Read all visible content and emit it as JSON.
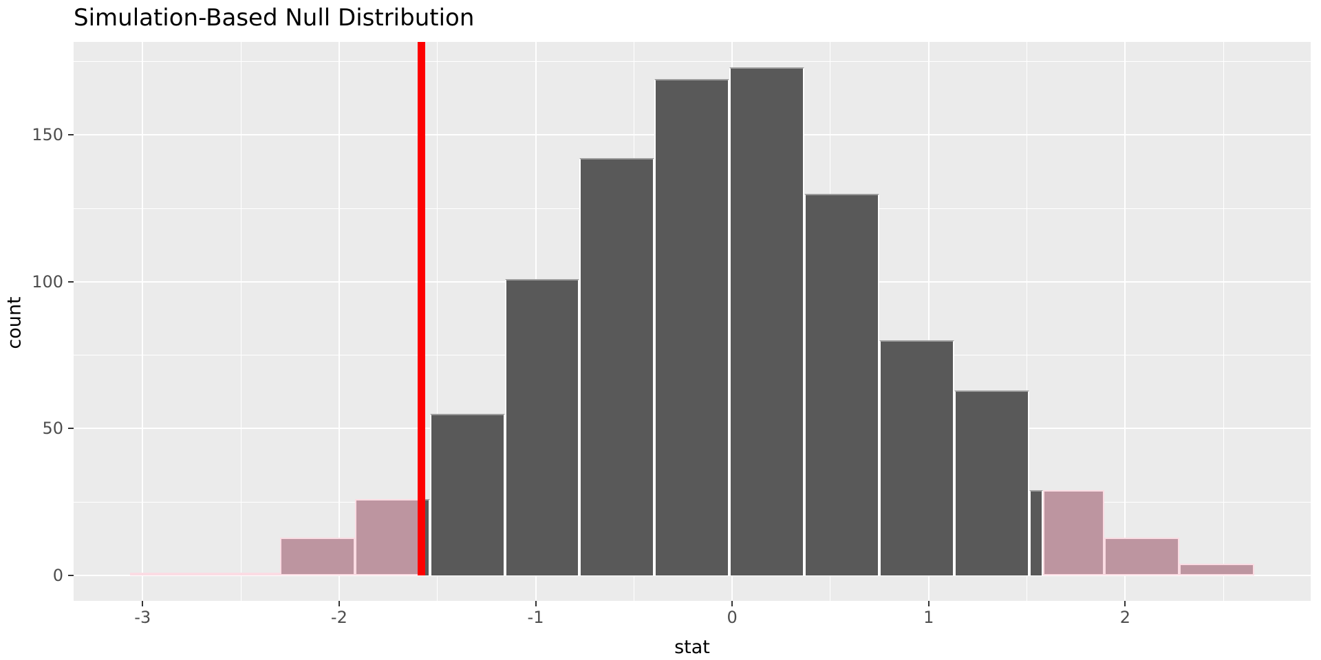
{
  "title": "Simulation-Based Null Distribution",
  "axes": {
    "xlabel": "stat",
    "ylabel": "count",
    "x_tick_labels": [
      "-3",
      "-2",
      "-1",
      "0",
      "1",
      "2"
    ],
    "y_tick_labels": [
      "0",
      "50",
      "100",
      "150"
    ]
  },
  "colors": {
    "panel_bg": "#ebebeb",
    "gridline": "#ffffff",
    "bar_dark_fill": "#595959",
    "bar_dark_border": "#ffffff",
    "bar_tail_fill": "#bd95a0",
    "bar_tail_border": "#fbdce3",
    "observed_line": "#fd0000",
    "tick_label": "#4d4d4d",
    "tick_mark": "#333333",
    "title_text": "#000000"
  },
  "chart_data": {
    "type": "histogram",
    "title": "Simulation-Based Null Distribution",
    "xlabel": "stat",
    "ylabel": "count",
    "bin_start": -3.065,
    "bin_width": 0.3815,
    "counts": [
      1,
      1,
      13,
      26,
      55,
      101,
      142,
      169,
      173,
      130,
      80,
      63,
      29,
      13,
      4
    ],
    "total_reps": 1000,
    "observed_stat": -1.582,
    "two_sided_mirror": 1.582,
    "shaded_tails": "two-sided",
    "x_major_ticks": [
      -3,
      -2,
      -1,
      0,
      1,
      2
    ],
    "x_minor_ticks": [
      -2.5,
      -1.5,
      -0.5,
      0.5,
      1.5,
      2.5
    ],
    "y_major_ticks": [
      0,
      50,
      100,
      150
    ],
    "y_minor_ticks": [
      25,
      75,
      125,
      175
    ],
    "xlim": [
      -3.351,
      2.944
    ],
    "ylim": [
      -8.65,
      181.65
    ],
    "grid": true,
    "legend_position": "none"
  }
}
